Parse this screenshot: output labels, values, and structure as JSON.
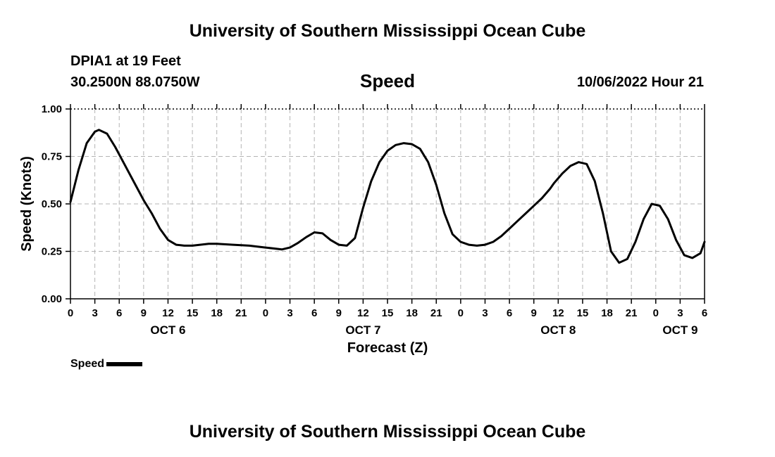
{
  "page": {
    "title": "University of Southern Mississippi Ocean Cube",
    "footer_title": "University of Southern Mississippi Ocean Cube",
    "station": "DPIA1 at 19 Feet",
    "coordinates": "30.2500N  88.0750W",
    "chart_title": "Speed",
    "datetime": "10/06/2022 Hour 21"
  },
  "legend": {
    "label": "Speed"
  },
  "chart_data": {
    "type": "line",
    "title": "Speed",
    "xlabel": "Forecast (Z)",
    "ylabel": "Speed (Knots)",
    "xlim": [
      0,
      78
    ],
    "ylim": [
      0,
      1
    ],
    "grid": true,
    "legend_position": "bottom-left",
    "y_ticks": [
      0,
      0.25,
      0.5,
      0.75,
      1.0
    ],
    "y_tick_labels": [
      "0.00",
      "0.25",
      "0.50",
      "0.75",
      "1.00"
    ],
    "x_ticks": [
      0,
      3,
      6,
      9,
      12,
      15,
      18,
      21,
      24,
      27,
      30,
      33,
      36,
      39,
      42,
      45,
      48,
      51,
      54,
      57,
      60,
      63,
      66,
      69,
      72,
      75,
      78
    ],
    "x_tick_labels": [
      "0",
      "3",
      "6",
      "9",
      "12",
      "15",
      "18",
      "21",
      "0",
      "3",
      "6",
      "9",
      "12",
      "15",
      "18",
      "21",
      "0",
      "3",
      "6",
      "9",
      "12",
      "15",
      "18",
      "21",
      "0",
      "3",
      "6"
    ],
    "day_labels": [
      {
        "x": 12,
        "label": "OCT 6"
      },
      {
        "x": 36,
        "label": "OCT 7"
      },
      {
        "x": 60,
        "label": "OCT 8"
      },
      {
        "x": 75,
        "label": "OCT 9"
      }
    ],
    "series": [
      {
        "name": "Speed",
        "color": "#000000",
        "x": [
          0,
          1,
          2,
          3,
          3.5,
          4.5,
          5.5,
          6.5,
          8,
          9,
          10,
          11,
          12,
          13,
          14,
          15,
          17,
          18,
          20,
          22,
          24,
          25,
          26,
          27,
          28,
          29,
          30,
          31,
          32,
          33,
          34,
          35,
          36,
          37,
          38,
          39,
          40,
          41,
          42,
          43,
          44,
          45,
          46,
          47,
          48,
          49,
          50,
          51,
          52,
          53,
          54,
          55,
          56,
          57,
          58,
          59,
          59.5,
          60.5,
          61.5,
          62.5,
          63.5,
          64.5,
          65.5,
          66.5,
          67.5,
          68.5,
          69.5,
          70.5,
          71.5,
          72.5,
          73.5,
          74.5,
          75.5,
          76.5,
          77.5,
          78
        ],
        "values": [
          0.51,
          0.68,
          0.82,
          0.88,
          0.89,
          0.87,
          0.8,
          0.72,
          0.6,
          0.52,
          0.45,
          0.37,
          0.31,
          0.285,
          0.28,
          0.28,
          0.29,
          0.29,
          0.285,
          0.28,
          0.27,
          0.265,
          0.26,
          0.27,
          0.295,
          0.325,
          0.35,
          0.345,
          0.31,
          0.285,
          0.28,
          0.32,
          0.48,
          0.62,
          0.72,
          0.78,
          0.81,
          0.82,
          0.815,
          0.79,
          0.72,
          0.6,
          0.45,
          0.34,
          0.3,
          0.285,
          0.28,
          0.285,
          0.3,
          0.33,
          0.37,
          0.41,
          0.45,
          0.49,
          0.53,
          0.58,
          0.61,
          0.66,
          0.7,
          0.72,
          0.71,
          0.62,
          0.45,
          0.25,
          0.19,
          0.21,
          0.3,
          0.42,
          0.5,
          0.49,
          0.42,
          0.31,
          0.23,
          0.215,
          0.24,
          0.3
        ]
      }
    ]
  }
}
